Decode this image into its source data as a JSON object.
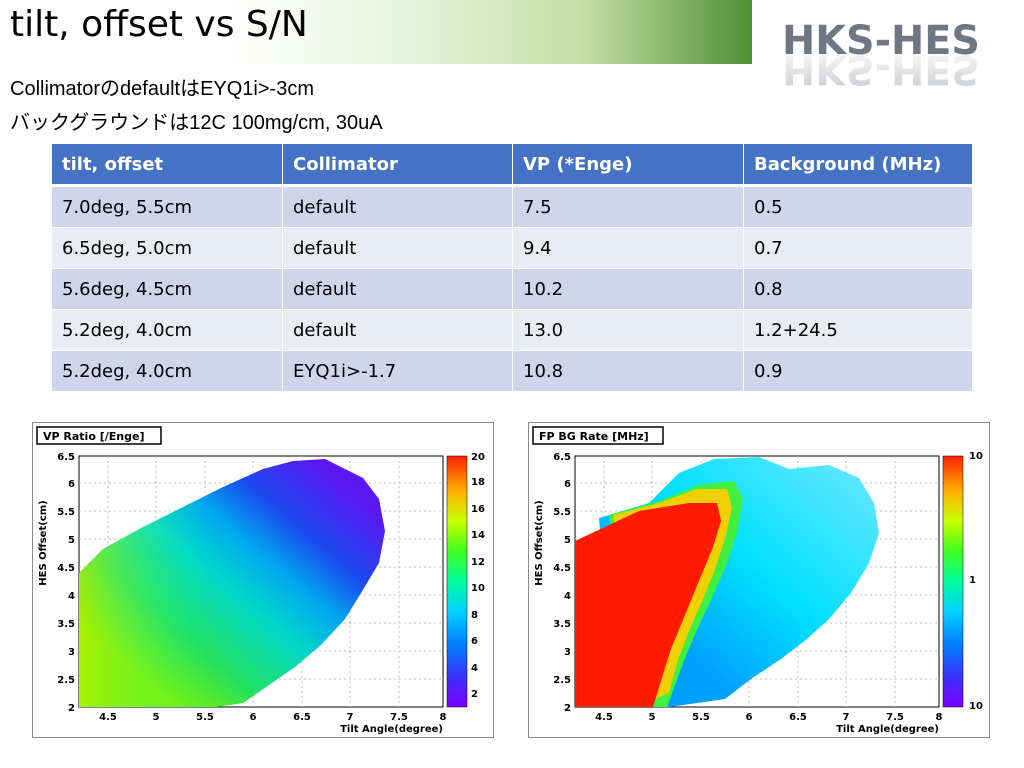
{
  "slide": {
    "title": "tilt, offset vs S/N",
    "logo_text": "HKS-HES",
    "lines": [
      "CollimatorのdefaultはEYQ1i>-3cm",
      "バックグラウンドは12C 100mg/cm, 30uA"
    ]
  },
  "table": {
    "headers": [
      "tilt, offset",
      "Collimator",
      "VP (*Enge)",
      "Background (MHz)"
    ],
    "rows": [
      [
        "7.0deg, 5.5cm",
        "default",
        "7.5",
        "0.5"
      ],
      [
        "6.5deg, 5.0cm",
        "default",
        "9.4",
        "0.7"
      ],
      [
        "5.6deg, 4.5cm",
        "default",
        "10.2",
        "0.8"
      ],
      [
        "5.2deg, 4.0cm",
        "default",
        "13.0",
        "1.2+24.5"
      ],
      [
        "5.2deg, 4.0cm",
        "EYQ1i>-1.7",
        "10.8",
        "0.9"
      ]
    ]
  },
  "plots": [
    {
      "title": "VP Ratio [/Enge]",
      "xlabel": "Tilt Angle(degree)",
      "ylabel": "HES Offset(cm)",
      "xticks": [
        "4.5",
        "5",
        "5.5",
        "6",
        "6.5",
        "7",
        "7.5",
        "8"
      ],
      "yticks": [
        "2",
        "2.5",
        "3",
        "3.5",
        "4",
        "4.5",
        "5",
        "5.5",
        "6",
        "6.5"
      ],
      "zticks": [
        "2",
        "4",
        "6",
        "8",
        "10",
        "12",
        "14",
        "16",
        "18",
        "20"
      ]
    },
    {
      "title": "FP BG Rate [MHz]",
      "xlabel": "Tilt Angle(degree)",
      "ylabel": "HES Offset(cm)",
      "xticks": [
        "4.5",
        "5",
        "5.5",
        "6",
        "6.5",
        "7",
        "7.5",
        "8"
      ],
      "yticks": [
        "2",
        "2.5",
        "3",
        "3.5",
        "4",
        "4.5",
        "5",
        "5.5",
        "6",
        "6.5"
      ],
      "zticks": [
        "10",
        "1",
        "10"
      ]
    }
  ]
}
